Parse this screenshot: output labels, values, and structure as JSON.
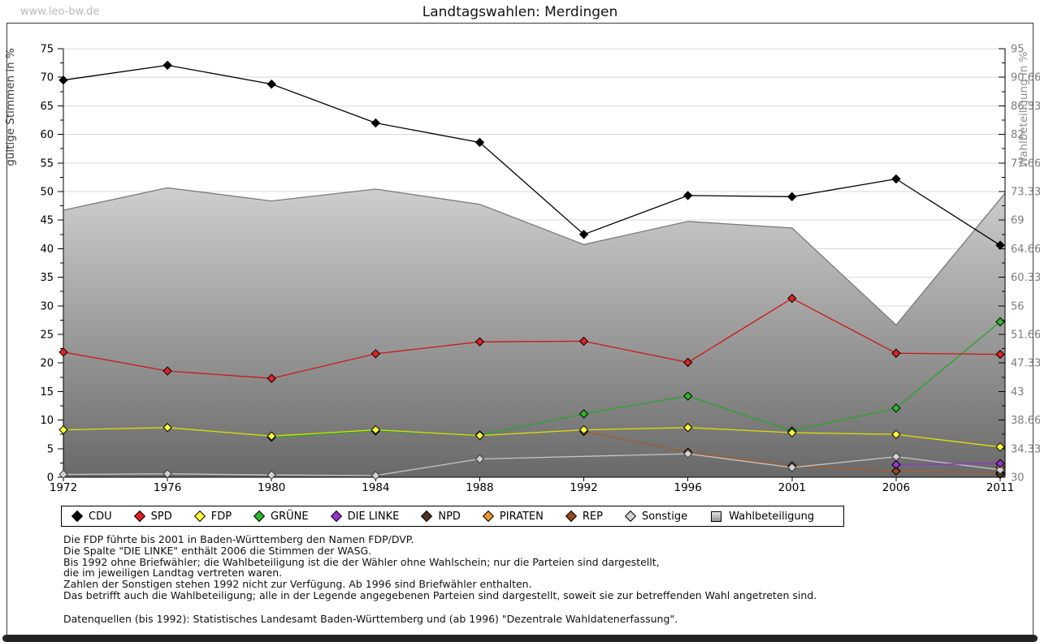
{
  "watermark": "www.leo-bw.de",
  "title": "Landtagswahlen: Merdingen",
  "axes": {
    "left_label": "gültige Stimmen in %",
    "right_label": "Wahlbeteiligung in %",
    "left_min": 0,
    "left_max": 75,
    "left_step": 5,
    "right_min": 30,
    "right_max": 95,
    "right_step": 5
  },
  "chart_data": {
    "type": "line",
    "title": "Landtagswahlen: Merdingen",
    "xlabel": "",
    "ylabel_left": "gültige Stimmen in %",
    "ylabel_right": "Wahlbeteiligung in %",
    "ylim_left": [
      0,
      75
    ],
    "ylim_right": [
      30,
      95
    ],
    "grid": true,
    "legend_position": "bottom",
    "categories": [
      "1972",
      "1976",
      "1980",
      "1984",
      "1988",
      "1992",
      "1996",
      "2001",
      "2006",
      "2011"
    ],
    "series": [
      {
        "name": "CDU",
        "axis": "left",
        "line": "#000000",
        "fill": "#000000",
        "edge": "#000000",
        "values": [
          69.5,
          72.1,
          68.8,
          62.0,
          58.6,
          42.5,
          49.3,
          49.1,
          52.2,
          40.6
        ]
      },
      {
        "name": "SPD",
        "axis": "left",
        "line": "#cc1818",
        "fill": "#dd2222",
        "edge": "#000000",
        "values": [
          21.9,
          18.6,
          17.3,
          21.6,
          23.7,
          23.8,
          20.1,
          31.3,
          21.7,
          21.5
        ]
      },
      {
        "name": "FDP",
        "axis": "left",
        "line": "#dede00",
        "fill": "#ffff33",
        "edge": "#000000",
        "values": [
          8.3,
          8.7,
          7.2,
          8.3,
          7.3,
          8.3,
          8.7,
          7.8,
          7.5,
          5.3
        ]
      },
      {
        "name": "GRÜNE",
        "axis": "left",
        "line": "#28a428",
        "fill": "#2fb52f",
        "edge": "#000000",
        "values": [
          null,
          null,
          7.0,
          8.1,
          7.4,
          11.1,
          14.2,
          8.1,
          12.1,
          27.2
        ]
      },
      {
        "name": "DIE LINKE",
        "axis": "left",
        "line": "#9932cc",
        "fill": "#9932cc",
        "edge": "#000000",
        "values": [
          null,
          null,
          null,
          null,
          null,
          null,
          null,
          null,
          2.2,
          2.4
        ]
      },
      {
        "name": "NPD",
        "axis": "left",
        "line": "#4d3626",
        "fill": "#4d3626",
        "edge": "#000000",
        "values": [
          null,
          null,
          null,
          null,
          null,
          null,
          null,
          null,
          null,
          0.5
        ]
      },
      {
        "name": "PIRATEN",
        "axis": "left",
        "line": "#e08c28",
        "fill": "#e8962e",
        "edge": "#000000",
        "values": [
          null,
          null,
          null,
          null,
          null,
          null,
          null,
          null,
          null,
          1.8
        ]
      },
      {
        "name": "REP",
        "axis": "left",
        "line": "#a35c2a",
        "fill": "#91481b",
        "edge": "#000000",
        "values": [
          null,
          null,
          null,
          null,
          null,
          8.0,
          4.4,
          2.0,
          1.1,
          0.8
        ]
      },
      {
        "name": "Sonstige",
        "axis": "left",
        "line": "#c6c6c6",
        "fill": "#d2d2d2",
        "edge": "#3a3a3a",
        "values": [
          0.5,
          0.6,
          0.4,
          0.3,
          3.2,
          null,
          4.1,
          1.7,
          3.6,
          1.3
        ]
      },
      {
        "name": "Wahlbeteiligung",
        "axis": "right",
        "type": "area",
        "line": "#7a7a7a",
        "fill_gradient": [
          "#ffffff",
          "#696969"
        ],
        "values": [
          70.5,
          73.9,
          71.9,
          73.7,
          71.4,
          65.3,
          68.8,
          67.8,
          53.1,
          72.2
        ]
      }
    ]
  },
  "legend": {
    "items": [
      {
        "label": "CDU",
        "shape": "diamond",
        "color": "#000000"
      },
      {
        "label": "SPD",
        "shape": "diamond",
        "color": "#dd2222"
      },
      {
        "label": "FDP",
        "shape": "diamond",
        "color": "#ffff33"
      },
      {
        "label": "GRÜNE",
        "shape": "diamond",
        "color": "#2fb52f"
      },
      {
        "label": "DIE LINKE",
        "shape": "diamond",
        "color": "#9932cc"
      },
      {
        "label": "NPD",
        "shape": "diamond",
        "color": "#4d3626"
      },
      {
        "label": "PIRATEN",
        "shape": "diamond",
        "color": "#e8962e"
      },
      {
        "label": "REP",
        "shape": "diamond",
        "color": "#91481b"
      },
      {
        "label": "Sonstige",
        "shape": "diamond",
        "color": "#d2d2d2"
      },
      {
        "label": "Wahlbeteiligung",
        "shape": "square",
        "color": "#b4b4b4"
      }
    ]
  },
  "footnotes": {
    "lines": [
      "Die FDP führte bis 2001 in Baden-Württemberg den Namen FDP/DVP.",
      "Die Spalte \"DIE LINKE\" enthält 2006 die Stimmen der WASG.",
      "Bis 1992 ohne Briefwähler; die Wahlbeteiligung ist die der Wähler ohne Wahlschein; nur die Parteien sind dargestellt,",
      "die im jeweiligen Landtag vertreten waren.",
      "Zahlen der Sonstigen stehen 1992 nicht zur Verfügung. Ab 1996 sind Briefwähler enthalten.",
      "Das betrifft auch die Wahlbeteiligung; alle in der Legende angegebenen Parteien sind dargestellt, soweit sie zur betreffenden Wahl angetreten sind."
    ],
    "source": "Datenquellen (bis 1992): Statistisches Landesamt Baden-Württemberg und (ab 1996) \"Dezentrale Wahldatenerfassung\"."
  }
}
